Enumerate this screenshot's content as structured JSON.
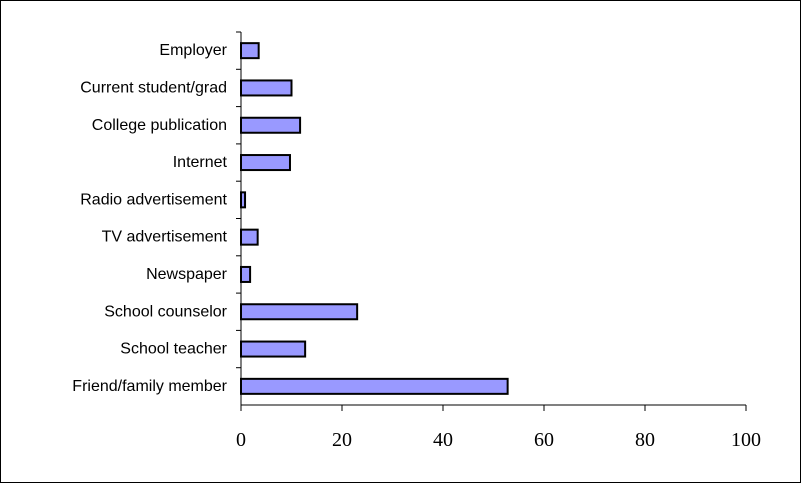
{
  "chart_data": {
    "type": "bar",
    "orientation": "horizontal",
    "categories": [
      "Employer",
      "Current student/grad",
      "College publication",
      "Internet",
      "Radio advertisement",
      "TV advertisement",
      "Newspaper",
      "School counselor",
      "School teacher",
      "Friend/family member"
    ],
    "values": [
      3.5,
      10,
      11.7,
      9.7,
      0.8,
      3.3,
      1.8,
      23,
      12.7,
      52.8
    ],
    "xlim": [
      0,
      100
    ],
    "xticks": [
      "0",
      "20",
      "40",
      "60",
      "80",
      "100"
    ],
    "title": "",
    "xlabel": "",
    "ylabel": "",
    "grid": false,
    "legend": "none",
    "colors": {
      "bar_fill": "#9999ff",
      "bar_stroke": "#000000",
      "axis": "#000000",
      "frame": "#000000"
    }
  }
}
